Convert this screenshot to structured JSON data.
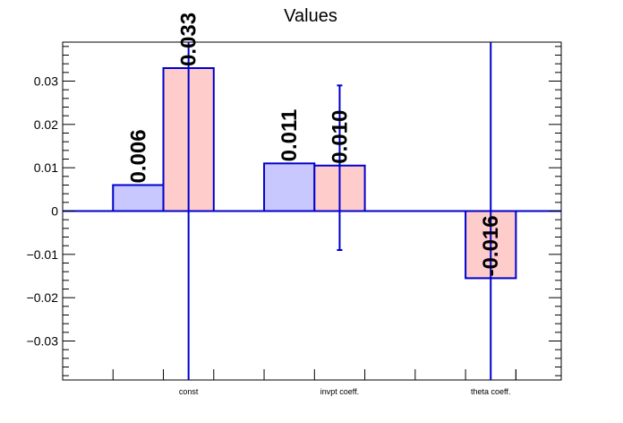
{
  "chart_data": {
    "type": "bar",
    "title": "Values",
    "xlabel": "",
    "ylabel": "",
    "categories": [
      "const",
      "invpt coeff.",
      "theta coeff."
    ],
    "ylim": [
      -0.039,
      0.039
    ],
    "yticks": [
      -0.03,
      -0.02,
      -0.01,
      0,
      0.01,
      0.02,
      0.03
    ],
    "ytick_labels": [
      "−0.03",
      "−0.02",
      "−0.01",
      "0",
      "0.01",
      "0.02",
      "0.03"
    ],
    "series": [
      {
        "fill": "#c8c8ff",
        "edge": "#0000cc",
        "values": [
          0.006,
          0.011,
          null
        ],
        "labels": [
          "0.006",
          "0.011",
          ""
        ]
      },
      {
        "fill": "#ffcccc",
        "edge": "#0000cc",
        "values": [
          0.033,
          0.0105,
          -0.0155
        ],
        "labels": [
          "0.033",
          "0.010",
          "-0.016"
        ],
        "errors": [
          [
            -0.04,
            0.04
          ],
          [
            -0.009,
            0.029
          ],
          [
            -0.04,
            0.04
          ]
        ]
      }
    ],
    "grid": false,
    "legend": "none"
  }
}
